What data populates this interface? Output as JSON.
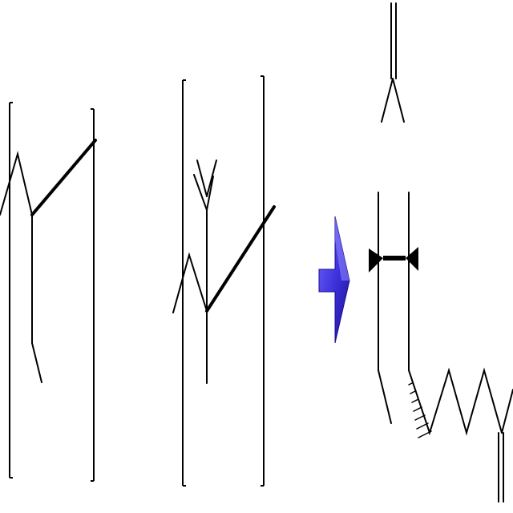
{
  "diagram": {
    "type": "chemical-reaction-scheme",
    "components": [
      {
        "role": "reactant",
        "form": "bracketed-repeat-unit",
        "index": 1
      },
      {
        "role": "reactant",
        "form": "bracketed-repeat-unit",
        "index": 2
      },
      {
        "role": "reaction-arrow",
        "direction": "right"
      },
      {
        "role": "product",
        "form": "skeletal-structure"
      }
    ],
    "colors": {
      "bond": "#000000",
      "arrow_fill": "#3b2fd9",
      "arrow_dark": "#1a0f8c",
      "arrow_light": "#6f66ff",
      "background": "#ffffff"
    },
    "icons": {
      "arrow": "right-arrow-icon"
    }
  }
}
